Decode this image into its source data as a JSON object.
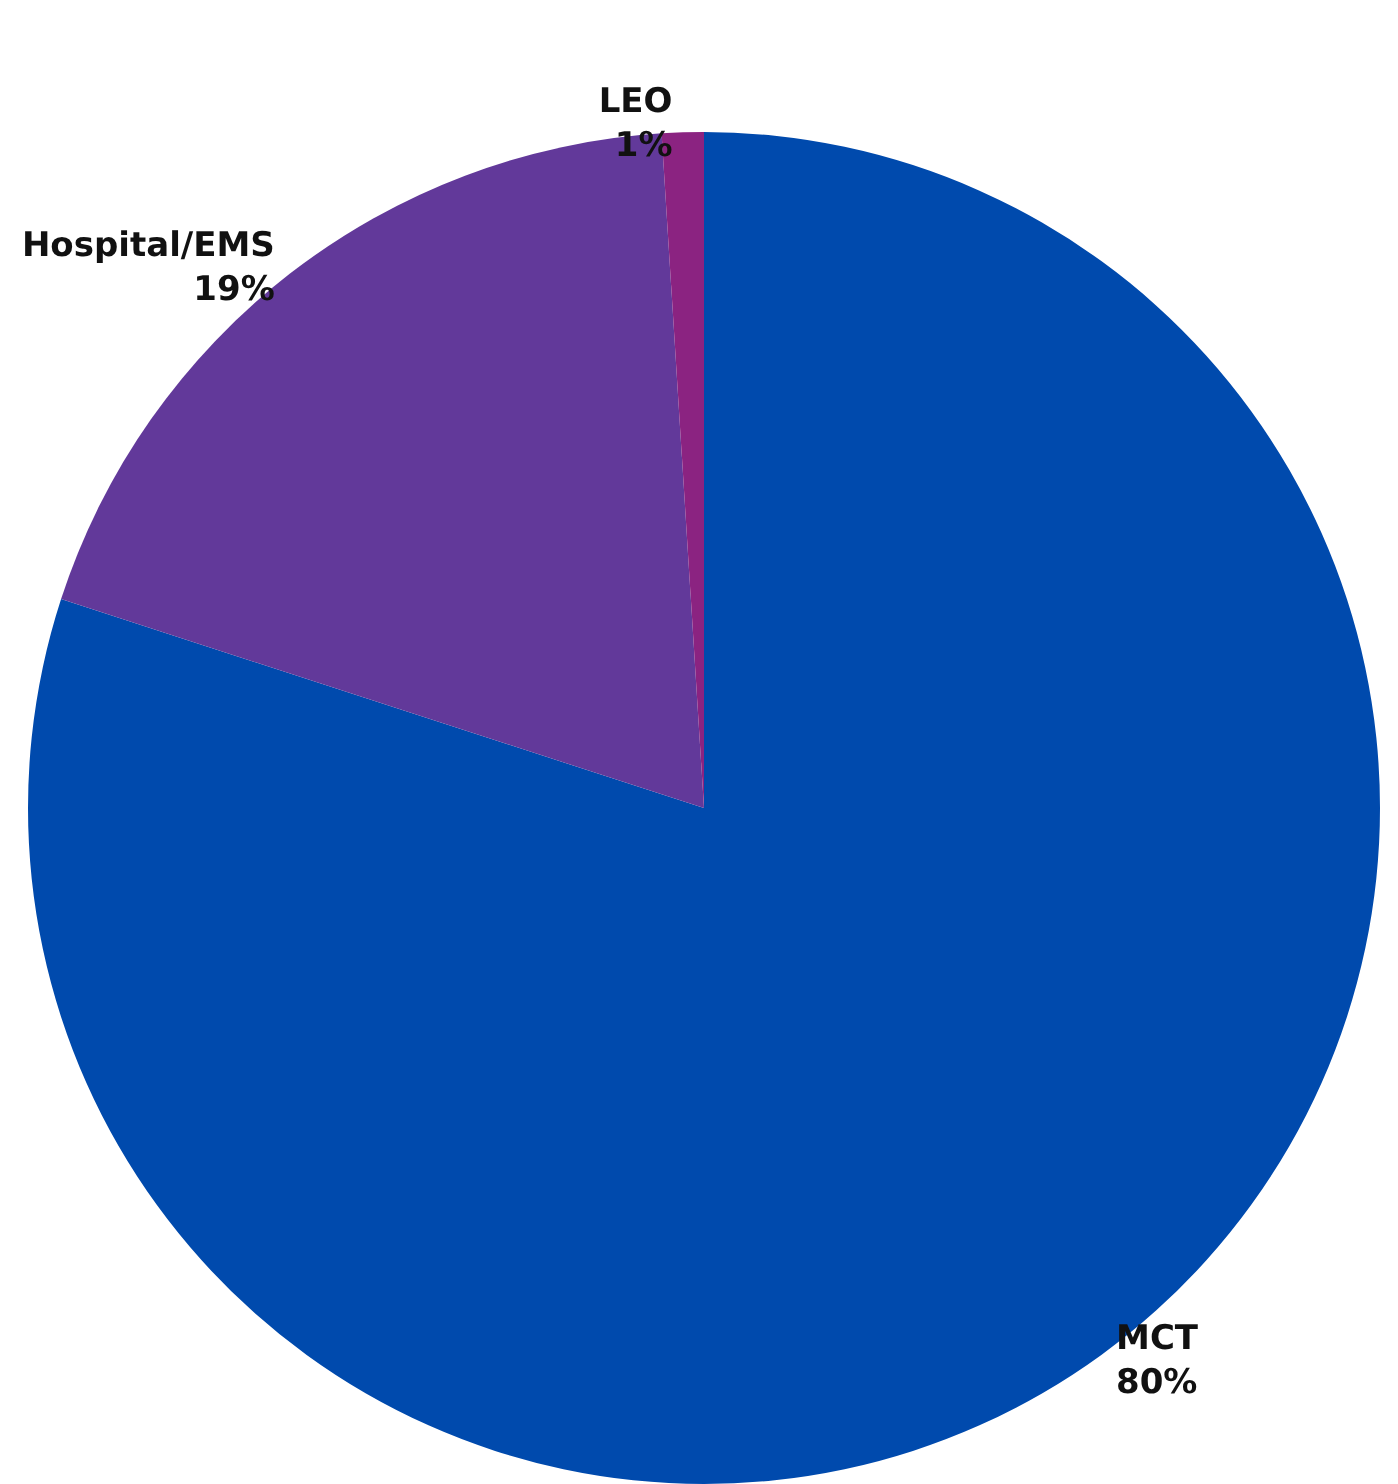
{
  "chart_data": {
    "type": "pie",
    "categories": [
      "MCT",
      "Hospital/EMS",
      "LEO"
    ],
    "values": [
      80,
      19,
      1
    ],
    "value_labels": [
      "80%",
      "19%",
      "1%"
    ],
    "colors": [
      "#004aad",
      "#62399a",
      "#8b2381"
    ]
  }
}
